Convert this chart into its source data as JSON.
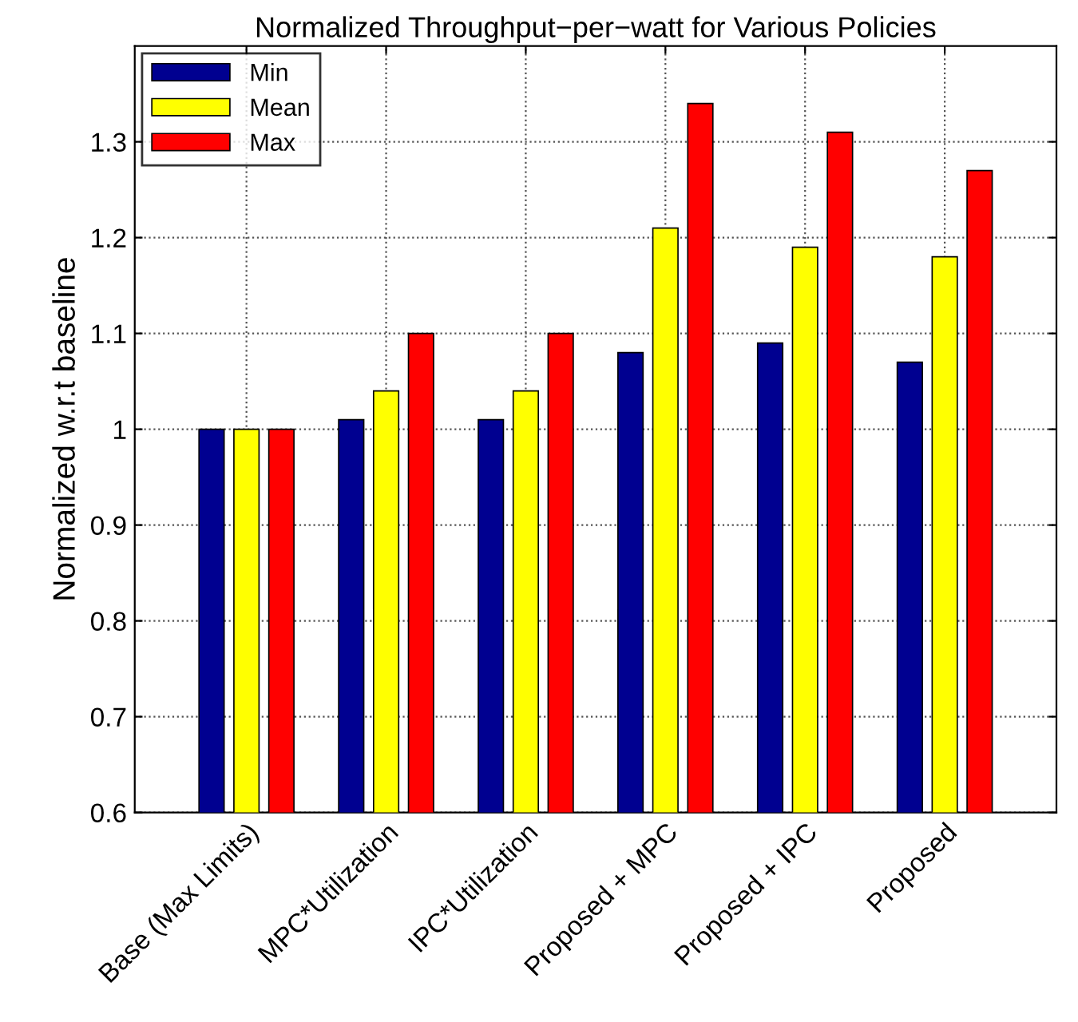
{
  "chart_data": {
    "type": "bar",
    "title": "Normalized Throughput−per−watt for Various Policies",
    "ylabel": "Normalized w.r.t baseline",
    "categories": [
      "Base (Max Limits)",
      "MPC*Utilization",
      "IPC*Utilization",
      "Proposed + MPC",
      "Proposed + IPC",
      "Proposed"
    ],
    "series": [
      {
        "name": "Min",
        "color": "#000090",
        "values": [
          1.0,
          1.01,
          1.01,
          1.08,
          1.09,
          1.07
        ]
      },
      {
        "name": "Mean",
        "color": "#ffff00",
        "values": [
          1.0,
          1.04,
          1.04,
          1.21,
          1.19,
          1.18
        ]
      },
      {
        "name": "Max",
        "color": "#ff0000",
        "values": [
          1.0,
          1.1,
          1.1,
          1.34,
          1.31,
          1.27
        ]
      }
    ],
    "ylim": [
      0.6,
      1.4
    ],
    "yticks": [
      0.6,
      0.7,
      0.8,
      0.9,
      1,
      1.1,
      1.2,
      1.3
    ],
    "grid": true,
    "legend": "top left"
  }
}
